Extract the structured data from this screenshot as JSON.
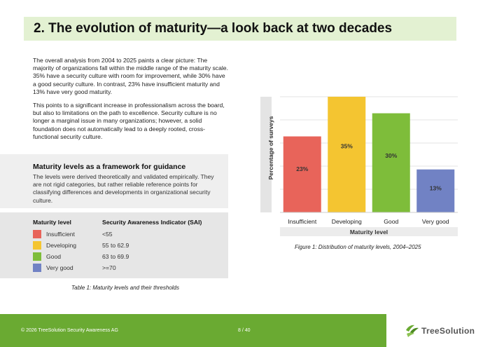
{
  "header": {
    "title": "2.  The evolution of maturity—a look back at two decades"
  },
  "body": {
    "paragraph_1": "The overall analysis from 2004 to 2025 paints a clear picture: The majority of organizations fall within the middle range of the maturity scale. 35% have a security culture with room for improvement, while 30% have a good security culture. In contrast, 23% have insufficient maturity and 13% have very good maturity.",
    "paragraph_2": "This points to a significant increase in professionalism across the board, but also to limitations on the path to excellence. Security culture is no longer a marginal issue in many organizations; however, a solid foundation does not automatically lead to a deeply rooted, cross-functional security culture."
  },
  "framework": {
    "heading": "Maturity levels as a framework for guidance",
    "text": "The levels were derived theoretically and validated empirically. They are not rigid categories, but rather reliable reference points for classifying differences and developments in organizational security culture."
  },
  "levels_table": {
    "col_level": "Maturity level",
    "col_sai": "Security Awareness Indicator (SAI)",
    "rows": [
      {
        "level": "Insufficient",
        "sai": "<55",
        "color": "#e8645a"
      },
      {
        "level": "Developing",
        "sai": "55 to 62.9",
        "color": "#f4c531"
      },
      {
        "level": "Good",
        "sai": "63 to 69.9",
        "color": "#7ebd3a"
      },
      {
        "level": "Very good",
        "sai": ">=70",
        "color": "#7182c4"
      }
    ],
    "caption": "Table 1: Maturity levels and their thresholds"
  },
  "chart_data": {
    "type": "bar",
    "categories": [
      "Insufficient",
      "Developing",
      "Good",
      "Very good"
    ],
    "values": [
      23,
      35,
      30,
      13
    ],
    "value_labels": [
      "23%",
      "35%",
      "30%",
      "13%"
    ],
    "colors": [
      "#e8645a",
      "#f4c531",
      "#7ebd3a",
      "#7182c4"
    ],
    "xlabel": "Maturity level",
    "ylabel": "Percentage of surveys",
    "ylim": [
      0,
      35
    ],
    "grid": true,
    "caption": "Figure 1: Distribution of maturity levels, 2004–2025"
  },
  "footer": {
    "copyright": "© 2026 TreeSolution Security Awareness AG",
    "page": "8 / 40",
    "logo_text": "TreeSolution",
    "logo_icon": "tree-logo-icon"
  }
}
